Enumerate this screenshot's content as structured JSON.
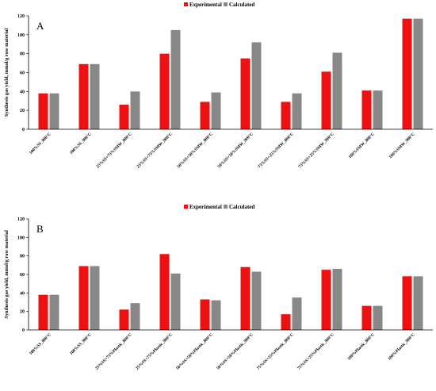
{
  "colors": {
    "experimental": "#ee1111",
    "calculated": "#888888"
  },
  "chart_data": [
    {
      "type": "bar",
      "panel_label": "A",
      "legend": [
        "Experimental",
        "Calculated"
      ],
      "legend_position": "top-center",
      "ylabel": "Synthesis gas yield, mmol/g raw material",
      "xlabel": "",
      "ylim": [
        0,
        120
      ],
      "yticks": [
        0,
        20,
        40,
        60,
        80,
        100,
        120
      ],
      "grid": false,
      "categories": [
        "100%SS_800°C",
        "100%SS_900°C",
        "25%SS+75%SMW_800°C",
        "25%SS+75%SMW_900°C",
        "50%SS+50%SMW_800°C",
        "50%SS+50%SMW_900°C",
        "75%SS+25%SMW_800°C",
        "75%SS+25%SMW_900°C",
        "100%SMW_800°C",
        "100%SMW_900°C"
      ],
      "series": [
        {
          "name": "Experimental",
          "values": [
            38,
            69,
            26,
            80,
            29,
            75,
            29,
            61,
            41,
            117
          ]
        },
        {
          "name": "Calculated",
          "values": [
            38,
            69,
            40,
            105,
            39,
            92,
            38,
            81,
            41,
            117
          ]
        }
      ]
    },
    {
      "type": "bar",
      "panel_label": "B",
      "legend": [
        "Experimental",
        "Calculated"
      ],
      "legend_position": "top-center",
      "ylabel": "Synthesis gas yield, mmol/g raw material",
      "xlabel": "",
      "ylim": [
        0,
        120
      ],
      "yticks": [
        0,
        20,
        40,
        60,
        80,
        100,
        120
      ],
      "grid": false,
      "categories": [
        "100%SS_800°C",
        "100%SS_900°C",
        "25%SS+75%Plastic_800°C",
        "25%SS+75%Plastic_900°C",
        "50%SS+50%Plastic_800°C",
        "50%SS+50%Plastic_900°C",
        "75%SS+25%Plastic_800°C",
        "75%SS+25%Plastic_900°C",
        "100%Plastic_800°C",
        "100%Plastic_900°C"
      ],
      "series": [
        {
          "name": "Experimental",
          "values": [
            38,
            69,
            22,
            82,
            33,
            68,
            17,
            65,
            26,
            58
          ]
        },
        {
          "name": "Calculated",
          "values": [
            38,
            69,
            29,
            61,
            32,
            63,
            35,
            66,
            26,
            58
          ]
        }
      ]
    }
  ]
}
